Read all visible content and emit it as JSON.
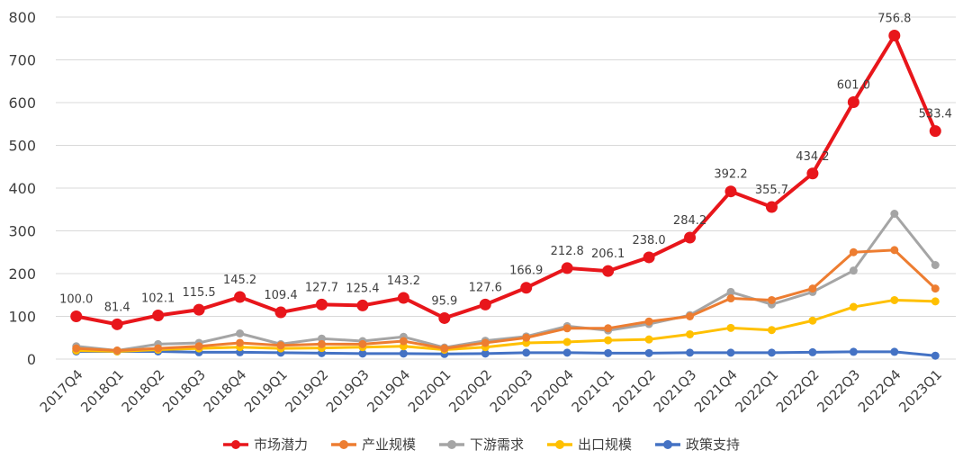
{
  "chart_data": {
    "type": "line",
    "categories": [
      "2017Q4",
      "2018Q1",
      "2018Q2",
      "2018Q3",
      "2018Q4",
      "2019Q1",
      "2019Q2",
      "2019Q3",
      "2019Q4",
      "2020Q1",
      "2020Q2",
      "2020Q3",
      "2020Q4",
      "2021Q1",
      "2021Q2",
      "2021Q3",
      "2021Q4",
      "2022Q1",
      "2022Q2",
      "2022Q3",
      "2022Q4",
      "2023Q1"
    ],
    "ylim": [
      0,
      800
    ],
    "yticks": [
      0,
      100,
      200,
      300,
      400,
      500,
      600,
      700,
      800
    ],
    "grid": true,
    "legend_position": "bottom",
    "series": [
      {
        "name": "市场潜力",
        "color": "#e8161b",
        "labels_shown": true,
        "values": [
          100.0,
          81.4,
          102.1,
          115.5,
          145.2,
          109.4,
          127.7,
          125.4,
          143.2,
          95.9,
          127.6,
          166.9,
          212.8,
          206.1,
          238.0,
          284.2,
          392.2,
          355.7,
          434.2,
          601.0,
          756.8,
          533.4
        ],
        "labels": [
          "100.0",
          "81.4",
          "102.1",
          "115.5",
          "145.2",
          "109.4",
          "127.7",
          "125.4",
          "143.2",
          "95.9",
          "127.6",
          "166.9",
          "212.8",
          "206.1",
          "238.0",
          "284.2",
          "392.2",
          "355.7",
          "434.2",
          "601.0",
          "756.8",
          "533.4"
        ]
      },
      {
        "name": "产业规模",
        "color": "#ed7d31",
        "values": [
          25,
          20,
          25,
          30,
          38,
          32,
          35,
          35,
          42,
          25,
          38,
          50,
          72,
          72,
          88,
          100,
          142,
          138,
          165,
          250,
          255,
          165
        ]
      },
      {
        "name": "下游需求",
        "color": "#a5a5a5",
        "values": [
          30,
          20,
          35,
          38,
          60,
          35,
          48,
          42,
          52,
          27,
          43,
          53,
          77,
          67,
          82,
          103,
          157,
          128,
          157,
          207,
          340,
          220
        ]
      },
      {
        "name": "出口规模",
        "color": "#ffc000",
        "values": [
          20,
          18,
          22,
          25,
          28,
          25,
          26,
          28,
          30,
          22,
          28,
          38,
          40,
          44,
          46,
          58,
          73,
          68,
          90,
          122,
          138,
          135
        ]
      },
      {
        "name": "政策支持",
        "color": "#4472c4",
        "values": [
          18,
          18,
          18,
          16,
          16,
          15,
          14,
          13,
          13,
          12,
          13,
          15,
          15,
          14,
          14,
          15,
          15,
          15,
          16,
          17,
          17,
          8
        ]
      }
    ]
  }
}
